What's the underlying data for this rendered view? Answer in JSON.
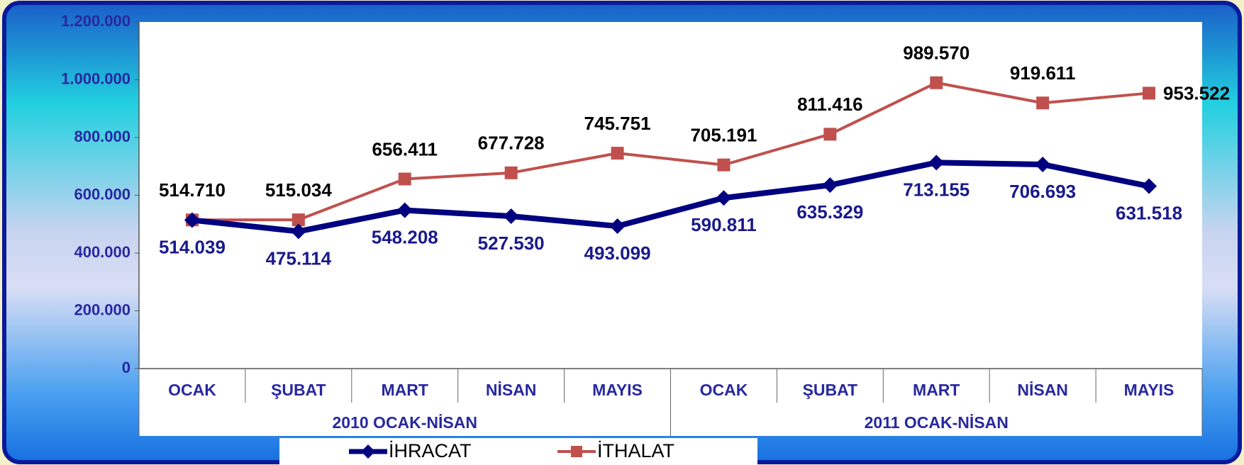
{
  "chart_data": {
    "type": "line",
    "categories": [
      "OCAK",
      "ŞUBAT",
      "MART",
      "NİSAN",
      "MAYIS",
      "OCAK",
      "ŞUBAT",
      "MART",
      "NİSAN",
      "MAYIS"
    ],
    "groups": [
      "2010 OCAK-NİSAN",
      "2011 OCAK-NİSAN"
    ],
    "series": [
      {
        "name": "İHRACAT",
        "color": "#000080",
        "marker": "diamond",
        "values": [
          514039,
          475114,
          548208,
          527530,
          493099,
          590811,
          635329,
          713155,
          706693,
          631518
        ],
        "value_labels": [
          "514.039",
          "475.114",
          "548.208",
          "527.530",
          "493.099",
          "590.811",
          "635.329",
          "713.155",
          "706.693",
          "631.518"
        ]
      },
      {
        "name": "İTHALAT",
        "color": "#c0504d",
        "marker": "square",
        "values": [
          514710,
          515034,
          656411,
          677728,
          745751,
          705191,
          811416,
          989570,
          919611,
          953522
        ],
        "value_labels": [
          "514.710",
          "515.034",
          "656.411",
          "677.728",
          "745.751",
          "705.191",
          "811.416",
          "989.570",
          "919.611",
          "953.522"
        ]
      }
    ],
    "ylim": [
      0,
      1200000
    ],
    "yticks": [
      0,
      {
        "value": 200000,
        "label": "200.000"
      },
      {
        "value": 400000,
        "label": "400.000"
      },
      {
        "value": 600000,
        "label": "600.000"
      },
      {
        "value": 800000,
        "label": "800.000"
      },
      {
        "value": 1000000,
        "label": "1.000.000"
      },
      {
        "value": 1200000,
        "label": "1.200.000"
      }
    ],
    "legend": "bottom"
  }
}
